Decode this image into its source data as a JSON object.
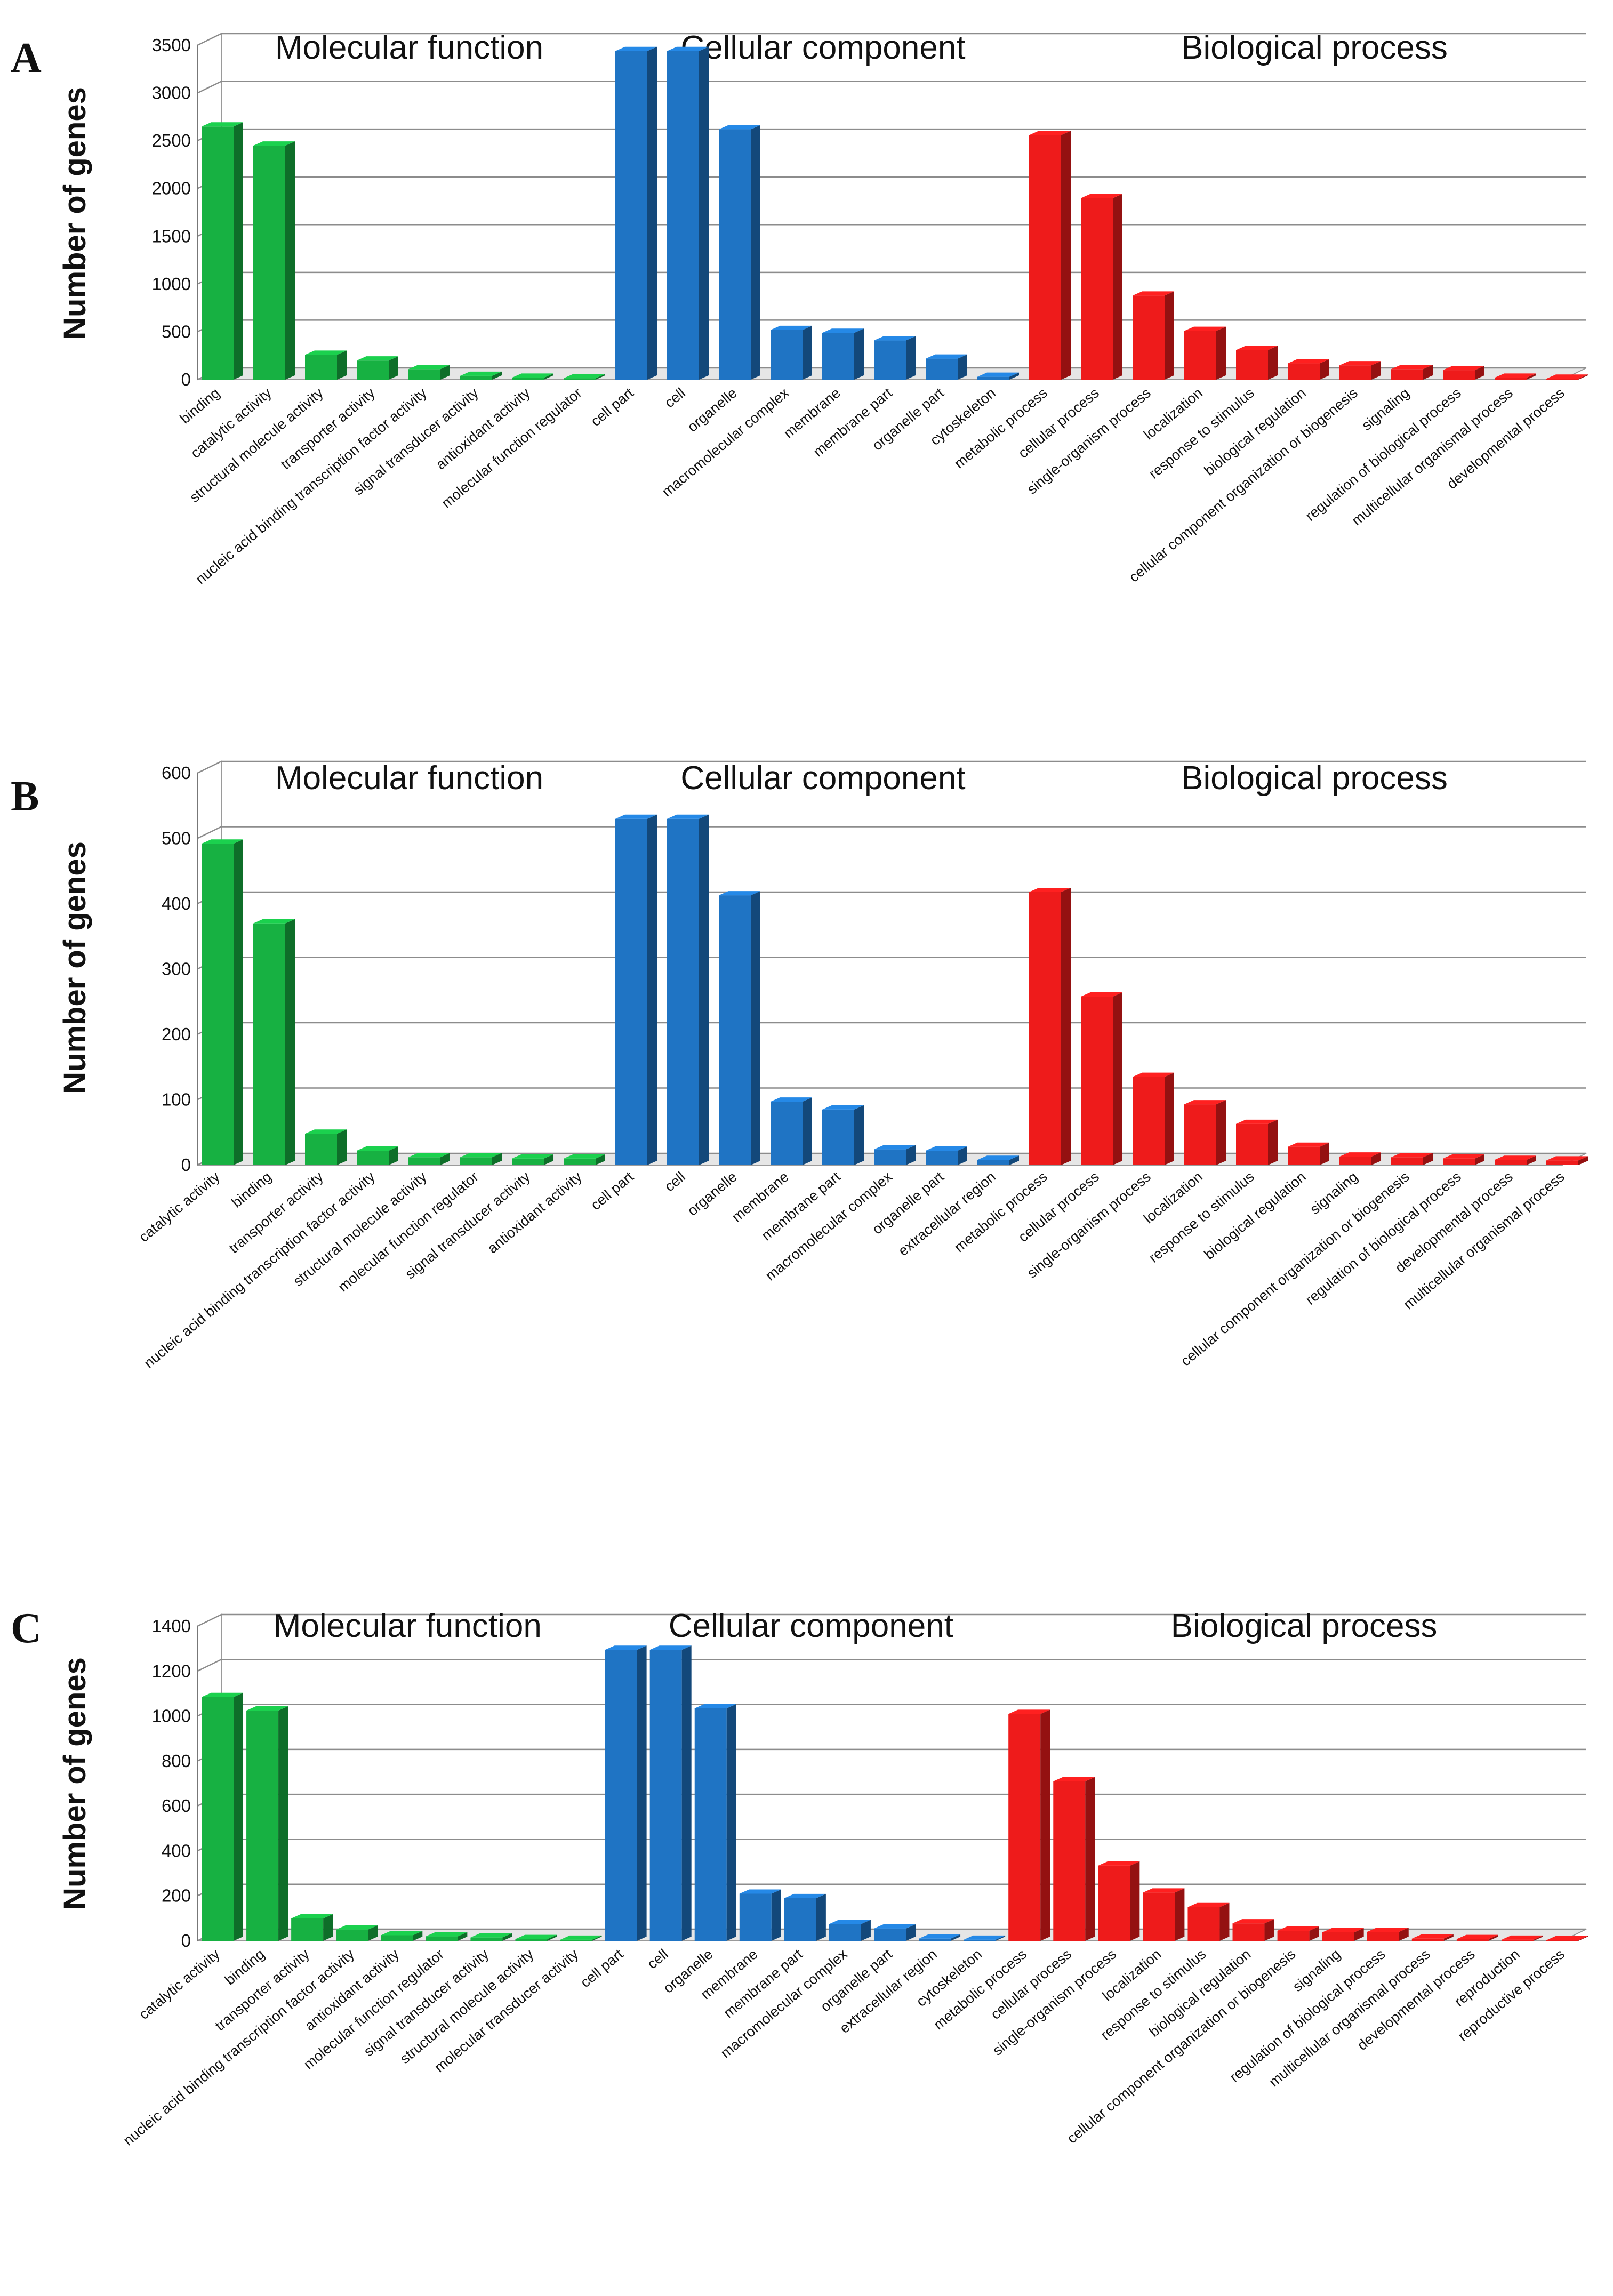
{
  "chart_data": [
    {
      "panel": "A",
      "type": "bar",
      "ylabel": "Number of genes",
      "ylim": [
        0,
        3500
      ],
      "yticks": [
        0,
        500,
        1000,
        1500,
        2000,
        2500,
        3000,
        3500
      ],
      "groups": [
        {
          "title": "Molecular function",
          "color": "#17b142",
          "categories": [
            "binding",
            "catalytic activity",
            "structural molecule activity",
            "transporter activity",
            "nucleic acid binding transcription factor activity",
            "signal transducer activity",
            "antioxidant activity",
            "molecular function regulator"
          ],
          "values": [
            2650,
            2450,
            260,
            200,
            110,
            40,
            20,
            15
          ]
        },
        {
          "title": "Cellular component",
          "color": "#1f74c4",
          "categories": [
            "cell part",
            "cell",
            "organelle",
            "macromolecular complex",
            "membrane",
            "membrane part",
            "organelle part",
            "cytoskeleton"
          ],
          "values": [
            3440,
            3440,
            2620,
            520,
            490,
            410,
            220,
            30
          ]
        },
        {
          "title": "Biological process",
          "color": "#ee1b1b",
          "categories": [
            "metabolic process",
            "cellular process",
            "single-organism process",
            "localization",
            "response to stimulus",
            "biological regulation",
            "cellular component organization or biogenesis",
            "signaling",
            "regulation of biological process",
            "multicellular organismal process",
            "developmental process"
          ],
          "values": [
            2560,
            1900,
            880,
            510,
            310,
            170,
            150,
            110,
            100,
            20,
            10
          ]
        }
      ]
    },
    {
      "panel": "B",
      "type": "bar",
      "ylabel": "Number of genes",
      "ylim": [
        0,
        600
      ],
      "yticks": [
        0,
        100,
        200,
        300,
        400,
        500,
        600
      ],
      "groups": [
        {
          "title": "Molecular function",
          "color": "#17b142",
          "categories": [
            "catalytic activity",
            "binding",
            "transporter activity",
            "nucleic acid binding transcription factor activity",
            "structural molecule activity",
            "molecular function regulator",
            "signal transducer activity",
            "antioxidant activity"
          ],
          "values": [
            492,
            370,
            48,
            22,
            12,
            12,
            10,
            10
          ]
        },
        {
          "title": "Cellular component",
          "color": "#1f74c4",
          "categories": [
            "cell part",
            "cell",
            "organelle",
            "membrane",
            "membrane part",
            "macromolecular complex",
            "organelle part",
            "extracellular region"
          ],
          "values": [
            530,
            530,
            413,
            97,
            85,
            24,
            22,
            8
          ]
        },
        {
          "title": "Biological process",
          "color": "#ee1b1b",
          "categories": [
            "metabolic process",
            "cellular process",
            "single-organism process",
            "localization",
            "response to stimulus",
            "biological regulation",
            "signaling",
            "cellular component organization or biogenesis",
            "regulation of biological process",
            "developmental process",
            "multicellular organismal process"
          ],
          "values": [
            418,
            258,
            135,
            93,
            63,
            28,
            13,
            12,
            10,
            8,
            7
          ]
        }
      ]
    },
    {
      "panel": "C",
      "type": "bar",
      "ylabel": "Number of genes",
      "ylim": [
        0,
        1400
      ],
      "yticks": [
        0,
        200,
        400,
        600,
        800,
        1000,
        1200,
        1400
      ],
      "groups": [
        {
          "title": "Molecular function",
          "color": "#17b142",
          "categories": [
            "catalytic activity",
            "binding",
            "transporter activity",
            "nucleic acid binding transcription factor activity",
            "antioxidant activity",
            "molecular function regulator",
            "signal transducer activity",
            "structural molecule activity",
            "molecular transducer activity"
          ],
          "values": [
            1085,
            1025,
            100,
            50,
            25,
            20,
            15,
            8,
            5
          ]
        },
        {
          "title": "Cellular component",
          "color": "#1f74c4",
          "categories": [
            "cell part",
            "cell",
            "organelle",
            "membrane",
            "membrane part",
            "macromolecular complex",
            "organelle part",
            "extracellular region",
            "cytoskeleton"
          ],
          "values": [
            1295,
            1295,
            1035,
            210,
            190,
            75,
            55,
            10,
            5
          ]
        },
        {
          "title": "Biological process",
          "color": "#ee1b1b",
          "categories": [
            "metabolic process",
            "cellular process",
            "single-organism process",
            "localization",
            "response to stimulus",
            "biological regulation",
            "cellular component organization or biogenesis",
            "signaling",
            "regulation of biological process",
            "multicellular organismal process",
            "developmental process",
            "reproduction",
            "reproductive process"
          ],
          "values": [
            1010,
            710,
            335,
            215,
            150,
            78,
            45,
            38,
            40,
            10,
            8,
            5,
            3
          ]
        }
      ]
    }
  ]
}
